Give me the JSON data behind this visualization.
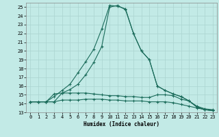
{
  "xlabel": "Humidex (Indice chaleur)",
  "bg_color": "#c2eae6",
  "grid_color": "#aad4d0",
  "line_color": "#1a6b5a",
  "xlim": [
    -0.5,
    23.5
  ],
  "ylim": [
    13,
    25.5
  ],
  "yticks": [
    13,
    14,
    15,
    16,
    17,
    18,
    19,
    20,
    21,
    22,
    23,
    24,
    25
  ],
  "xticks": [
    0,
    1,
    2,
    3,
    4,
    5,
    6,
    7,
    8,
    9,
    10,
    11,
    12,
    13,
    14,
    15,
    16,
    17,
    18,
    19,
    20,
    21,
    22,
    23
  ],
  "curve1_x": [
    0,
    1,
    2,
    3,
    4,
    5,
    6,
    7,
    8,
    9,
    10,
    11,
    12,
    13,
    14,
    15,
    16,
    17,
    18,
    19,
    20,
    21,
    22,
    23
  ],
  "curve1_y": [
    14.2,
    14.2,
    14.2,
    14.8,
    15.5,
    16.2,
    17.5,
    18.8,
    20.2,
    22.5,
    25.2,
    25.1,
    24.8,
    22.0,
    20.0,
    19.0,
    16.0,
    15.5,
    15.1,
    14.8,
    14.3,
    13.6,
    13.3,
    13.2
  ],
  "curve2_x": [
    0,
    1,
    2,
    3,
    4,
    5,
    6,
    7,
    8,
    9,
    10,
    11,
    12,
    13,
    14,
    15,
    16,
    17,
    18,
    19,
    20,
    21,
    22,
    23
  ],
  "curve2_y": [
    14.2,
    14.2,
    14.2,
    14.2,
    15.2,
    15.6,
    16.2,
    17.3,
    18.7,
    20.5,
    25.0,
    25.2,
    24.7,
    22.0,
    20.0,
    19.0,
    16.0,
    15.5,
    15.1,
    14.8,
    14.3,
    13.6,
    13.3,
    13.2
  ],
  "curve3_x": [
    0,
    1,
    2,
    3,
    4,
    5,
    6,
    7,
    8,
    9,
    10,
    11,
    12,
    13,
    14,
    15,
    16,
    17,
    18,
    19,
    20,
    21,
    22,
    23
  ],
  "curve3_y": [
    14.2,
    14.2,
    14.2,
    15.1,
    15.2,
    15.2,
    15.2,
    15.2,
    15.1,
    15.0,
    14.9,
    14.9,
    14.8,
    14.8,
    14.7,
    14.7,
    15.0,
    15.0,
    14.9,
    14.5,
    14.3,
    13.7,
    13.4,
    13.3
  ],
  "curve4_x": [
    0,
    1,
    2,
    3,
    4,
    5,
    6,
    7,
    8,
    9,
    10,
    11,
    12,
    13,
    14,
    15,
    16,
    17,
    18,
    19,
    20,
    21,
    22,
    23
  ],
  "curve4_y": [
    14.2,
    14.2,
    14.2,
    14.2,
    14.4,
    14.4,
    14.4,
    14.5,
    14.5,
    14.5,
    14.4,
    14.4,
    14.3,
    14.3,
    14.3,
    14.2,
    14.2,
    14.2,
    14.1,
    13.9,
    13.7,
    13.5,
    13.3,
    13.2
  ]
}
